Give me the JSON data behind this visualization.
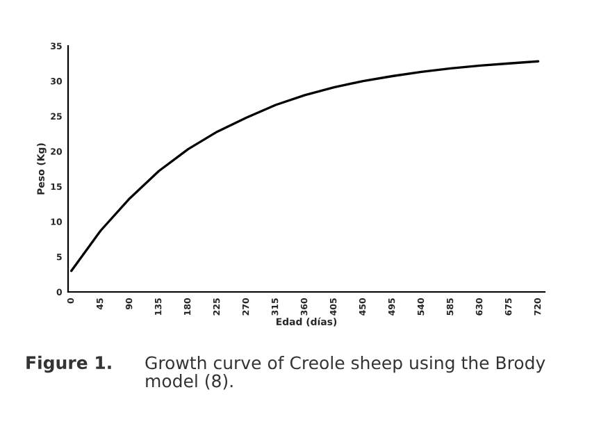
{
  "chart_data": {
    "type": "line",
    "xlabel": "Edad (días)",
    "ylabel": "Peso (Kg)",
    "x": [
      0,
      45,
      90,
      135,
      180,
      225,
      270,
      315,
      360,
      405,
      450,
      495,
      540,
      585,
      630,
      675,
      720
    ],
    "series": [
      {
        "color": "#000000",
        "values": [
          3,
          8.7,
          13.3,
          17.2,
          20.3,
          22.8,
          24.8,
          26.6,
          28,
          29.1,
          30,
          30.7,
          31.3,
          31.8,
          32.2,
          32.5,
          32.8
        ]
      }
    ],
    "xlim": [
      -5,
      730
    ],
    "xticks": [
      0,
      45,
      90,
      135,
      180,
      225,
      270,
      315,
      360,
      405,
      450,
      495,
      540,
      585,
      630,
      675,
      720
    ],
    "ylim": [
      0,
      35
    ],
    "yticks": [
      0,
      5,
      10,
      15,
      20,
      25,
      30,
      35
    ],
    "grid": false,
    "legend": false,
    "marker": "none",
    "line_style": "solid",
    "annotations": [
      "Figure 1.",
      "Growth curve of Creole sheep using the Brody model (8)."
    ]
  }
}
